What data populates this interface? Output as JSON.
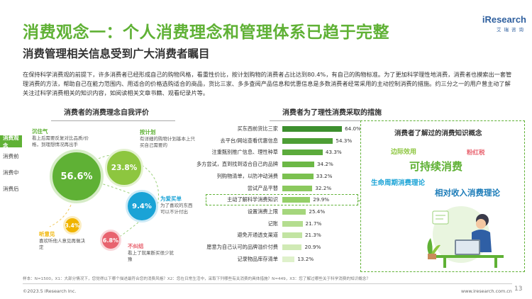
{
  "header": {
    "title": "消费观念一：个人消费理念和管理体系已趋于完整",
    "subtitle": "消费管理相关信息受到广大消费者瞩目",
    "logo_main": "iResearch",
    "logo_sub": "艾瑞咨询"
  },
  "intro": "在保持科学消费观的前提下，许多消费者已经形成自己的购物风格，看重性价比，按计划购物的消费者占比达到80.4%，有自己的购物标准。为了更加科学理性地消费，消费者也摸索出一套管理消费的方法，帮助自己在能力范围内、用适合的价格选购适合的商品，货比三家、多多查阅产品信息和优惠信息是多数消费者经常采用的主动控制消费的措施。约三分之一的用户曾主动了解关注过科学消费相关的知识内容，如阅读相关文章书籍、观看纪录片等。",
  "sidebar": {
    "items": [
      {
        "label": "消费观念",
        "active": true
      },
      {
        "label": "消费前",
        "active": false
      },
      {
        "label": "消费中",
        "active": false
      },
      {
        "label": "消费后",
        "active": false
      }
    ]
  },
  "left_chart": {
    "title": "消费者的消费理念自我评价",
    "bubbles": [
      {
        "value": "56.6%",
        "label": "沉住气",
        "desc": "看上后需要反复对比品质/价格，到理想情况再出手",
        "color": "#5fb135"
      },
      {
        "value": "23.8%",
        "label": "按计划",
        "desc": "有详细的购物计划基本上只买自己需要的",
        "color": "#8dc63f"
      },
      {
        "value": "9.4%",
        "label": "为爱买单",
        "desc": "为了喜欢的东西可以不计付出",
        "color": "#1aa3d6"
      },
      {
        "value": "6.8%",
        "label": "不纠结",
        "desc": "看上了就果断买很少犹豫",
        "color": "#e8636f"
      },
      {
        "value": "3.4%",
        "label": "听意见",
        "desc": "喜欢听他人意见再做决定",
        "color": "#f0b400"
      }
    ]
  },
  "chart_data": {
    "type": "bar",
    "title": "消费者为了理性消费采取的措施",
    "categories": [
      "买东西前货比三家",
      "去平台/网站查看优惠信息",
      "注重甄别推广信息、理性种草",
      "多方尝试，直到找到适合自己的品牌",
      "列购物清单，以防冲动消费",
      "尝试产品平替",
      "主动了解科学消费知识",
      "设置消费上限",
      "记账",
      "避免开通透支渠道",
      "愿意为自己认可的品牌溢价付费",
      "记录物品库存清单"
    ],
    "values": [
      64.0,
      54.3,
      43.3,
      34.2,
      33.2,
      32.2,
      29.9,
      25.4,
      21.7,
      21.3,
      20.9,
      13.2
    ],
    "value_labels": [
      "64.0%",
      "54.3%",
      "43.3%",
      "34.2%",
      "33.2%",
      "32.2%",
      "29.9%",
      "25.4%",
      "21.7%",
      "21.3%",
      "20.9%",
      "13.2%"
    ],
    "highlight_index": 6,
    "xlim": [
      0,
      70
    ],
    "colors": [
      "#3d8f2e",
      "#4d9e35",
      "#5cab3c",
      "#6cb846",
      "#7bc150",
      "#8bc95e",
      "#95cf68",
      "#a5d67c",
      "#b4dd8f",
      "#c2e4a2",
      "#d0eab5",
      "#dff1cb"
    ]
  },
  "knowledge_box": {
    "title": "消费者了解过的消费知识概念",
    "words": [
      {
        "text": "边际效用",
        "color": "#8dc63f"
      },
      {
        "text": "粉红税",
        "color": "#e8636f"
      },
      {
        "text": "可持续消费",
        "color": "#5fb135"
      },
      {
        "text": "生命周期消费理论",
        "color": "#1aa3d6"
      },
      {
        "text": "相对收入消费理论",
        "color": "#1a7bb8"
      }
    ]
  },
  "footer": {
    "note": "样本：N=1500，X1：大部分情况下，您觉得以下哪个描述最符合您的消费风格？X2：您在日常生活中，采取下列哪些有关消费的具体措施？N=449，X3：您了解过哪些关于科学消费的知识概念？",
    "copyright": "©2023.5 iResearch Inc.",
    "website": "www.iresearch.com.cn",
    "page": "13"
  }
}
